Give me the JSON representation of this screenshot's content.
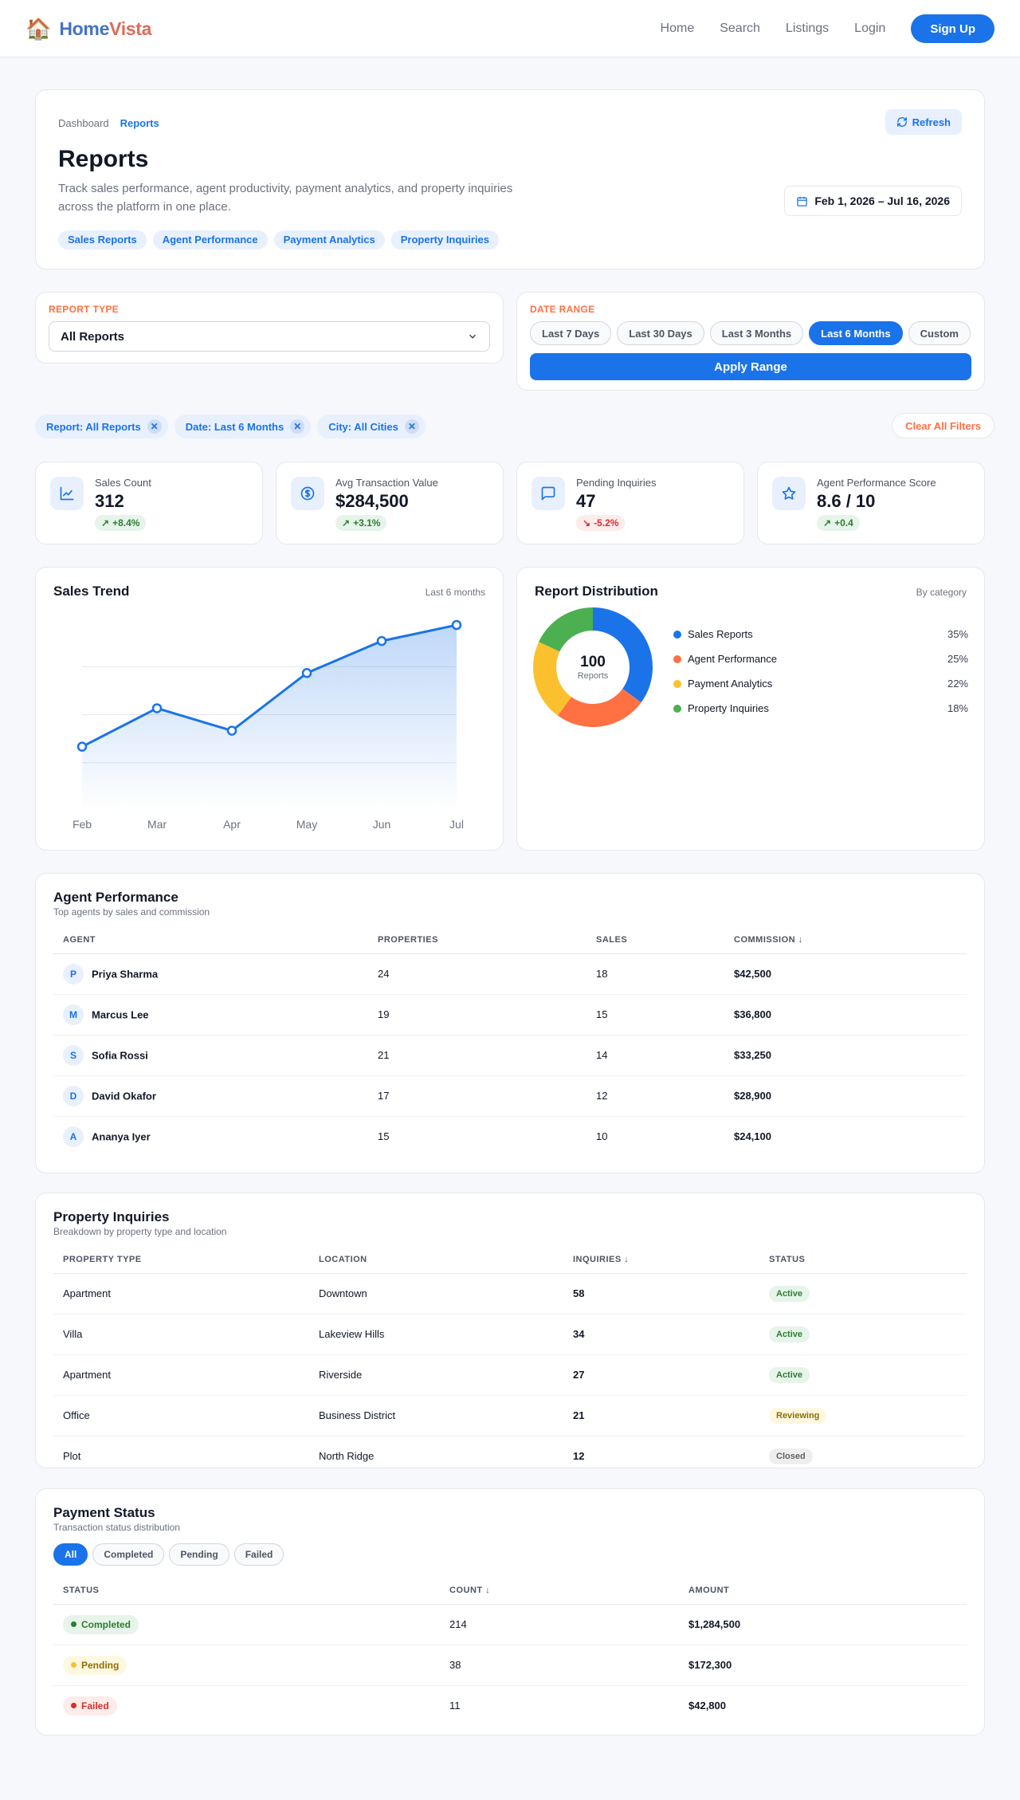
{
  "nav": {
    "brand_home": "Home",
    "brand_vista": "Vista",
    "links": [
      "Home",
      "Search",
      "Listings",
      "Login"
    ],
    "signup": "Sign Up"
  },
  "header": {
    "breadcrumb": [
      "Dashboard",
      "Reports"
    ],
    "refresh": "Refresh",
    "title": "Reports",
    "description": "Track sales performance, agent productivity, payment analytics, and property inquiries across the platform in one place.",
    "chips": [
      "Sales Reports",
      "Agent Performance",
      "Payment Analytics",
      "Property Inquiries"
    ],
    "date_range": "Feb 1, 2026 – Jul 16, 2026"
  },
  "filters": {
    "report_type_label": "REPORT TYPE",
    "report_type_value": "All Reports",
    "date_range_label": "DATE RANGE",
    "ranges": [
      "Last 7 Days",
      "Last 30 Days",
      "Last 3 Months",
      "Last 6 Months",
      "Custom"
    ],
    "active_range": "Last 6 Months",
    "apply": "Apply Range",
    "active_filters": [
      "Report: All Reports",
      "Date: Last 6 Months",
      "City: All Cities"
    ],
    "clear": "Clear All Filters"
  },
  "kpis": [
    {
      "label": "Sales Count",
      "value": "312",
      "delta": "+8.4%",
      "trend": "up",
      "icon": "chart-line-icon"
    },
    {
      "label": "Avg Transaction Value",
      "value": "$284,500",
      "delta": "+3.1%",
      "trend": "up",
      "icon": "dollar-circle-icon"
    },
    {
      "label": "Pending Inquiries",
      "value": "47",
      "delta": "-5.2%",
      "trend": "down",
      "icon": "chat-bubble-icon"
    },
    {
      "label": "Agent Performance Score",
      "value": "8.6 / 10",
      "delta": "+0.4",
      "trend": "up",
      "icon": "star-icon"
    }
  ],
  "sales_trend": {
    "title": "Sales Trend",
    "subtitle": "Last 6 months"
  },
  "distribution": {
    "title": "Report Distribution",
    "subtitle": "By category",
    "center_value": "100",
    "center_label": "Reports"
  },
  "chart_data": [
    {
      "type": "area",
      "title": "Sales Trend",
      "categories": [
        "Feb",
        "Mar",
        "Apr",
        "May",
        "Jun",
        "Jul"
      ],
      "values": [
        20,
        32,
        25,
        43,
        53,
        58
      ],
      "ylim": [
        0,
        60
      ],
      "grid": true,
      "color": "#1a73e8"
    },
    {
      "type": "pie",
      "title": "Report Distribution",
      "categories": [
        "Sales Reports",
        "Agent Performance",
        "Payment Analytics",
        "Property Inquiries"
      ],
      "values": [
        35,
        25,
        22,
        18
      ],
      "labels": [
        "35%",
        "25%",
        "22%",
        "18%"
      ],
      "colors": [
        "#1a73e8",
        "#ff7043",
        "#fbc02d",
        "#4caf50"
      ],
      "legend": "right"
    }
  ],
  "agents": {
    "title": "Agent Performance",
    "subtitle": "Top agents by sales and commission",
    "columns": [
      "AGENT",
      "PROPERTIES",
      "SALES",
      "COMMISSION ↓"
    ],
    "rows": [
      {
        "initial": "P",
        "name": "Priya Sharma",
        "properties": "24",
        "sales": "18",
        "commission": "$42,500"
      },
      {
        "initial": "M",
        "name": "Marcus Lee",
        "properties": "19",
        "sales": "15",
        "commission": "$36,800"
      },
      {
        "initial": "S",
        "name": "Sofia Rossi",
        "properties": "21",
        "sales": "14",
        "commission": "$33,250"
      },
      {
        "initial": "D",
        "name": "David Okafor",
        "properties": "17",
        "sales": "12",
        "commission": "$28,900"
      },
      {
        "initial": "A",
        "name": "Ananya Iyer",
        "properties": "15",
        "sales": "10",
        "commission": "$24,100"
      }
    ]
  },
  "inquiries": {
    "title": "Property Inquiries",
    "subtitle": "Breakdown by property type and location",
    "columns": [
      "PROPERTY TYPE",
      "LOCATION",
      "INQUIRIES ↓",
      "STATUS"
    ],
    "rows": [
      {
        "type": "Apartment",
        "location": "Downtown",
        "inquiries": "58",
        "status": "Active"
      },
      {
        "type": "Villa",
        "location": "Lakeview Hills",
        "inquiries": "34",
        "status": "Active"
      },
      {
        "type": "Apartment",
        "location": "Riverside",
        "inquiries": "27",
        "status": "Active"
      },
      {
        "type": "Office",
        "location": "Business District",
        "inquiries": "21",
        "status": "Reviewing"
      },
      {
        "type": "Plot",
        "location": "North Ridge",
        "inquiries": "12",
        "status": "Closed"
      }
    ]
  },
  "payments": {
    "title": "Payment Status",
    "subtitle": "Transaction status distribution",
    "tabs": [
      "All",
      "Completed",
      "Pending",
      "Failed"
    ],
    "active_tab": "All",
    "columns": [
      "STATUS",
      "COUNT ↓",
      "AMOUNT"
    ],
    "rows": [
      {
        "status": "Completed",
        "count": "214",
        "amount": "$1,284,500"
      },
      {
        "status": "Pending",
        "count": "38",
        "amount": "$172,300"
      },
      {
        "status": "Failed",
        "count": "11",
        "amount": "$42,800"
      }
    ]
  }
}
